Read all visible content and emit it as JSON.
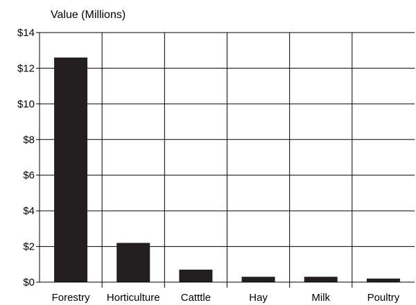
{
  "chart_data": {
    "type": "bar",
    "title": "",
    "ylabel": "Value (Millions)",
    "xlabel": "",
    "categories": [
      "Forestry",
      "Horticulture",
      "Catttle",
      "Hay",
      "Milk",
      "Poultry"
    ],
    "values": [
      12.6,
      2.2,
      0.7,
      0.3,
      0.3,
      0.2
    ],
    "ylim": [
      0,
      14
    ],
    "yticks": [
      0,
      2,
      4,
      6,
      8,
      10,
      12,
      14
    ],
    "ytick_labels": [
      "$0",
      "$2",
      "$4",
      "$6",
      "$8",
      "$10",
      "$12",
      "$14"
    ],
    "grid": true,
    "legend": "none",
    "bar_color": "#231f20"
  }
}
